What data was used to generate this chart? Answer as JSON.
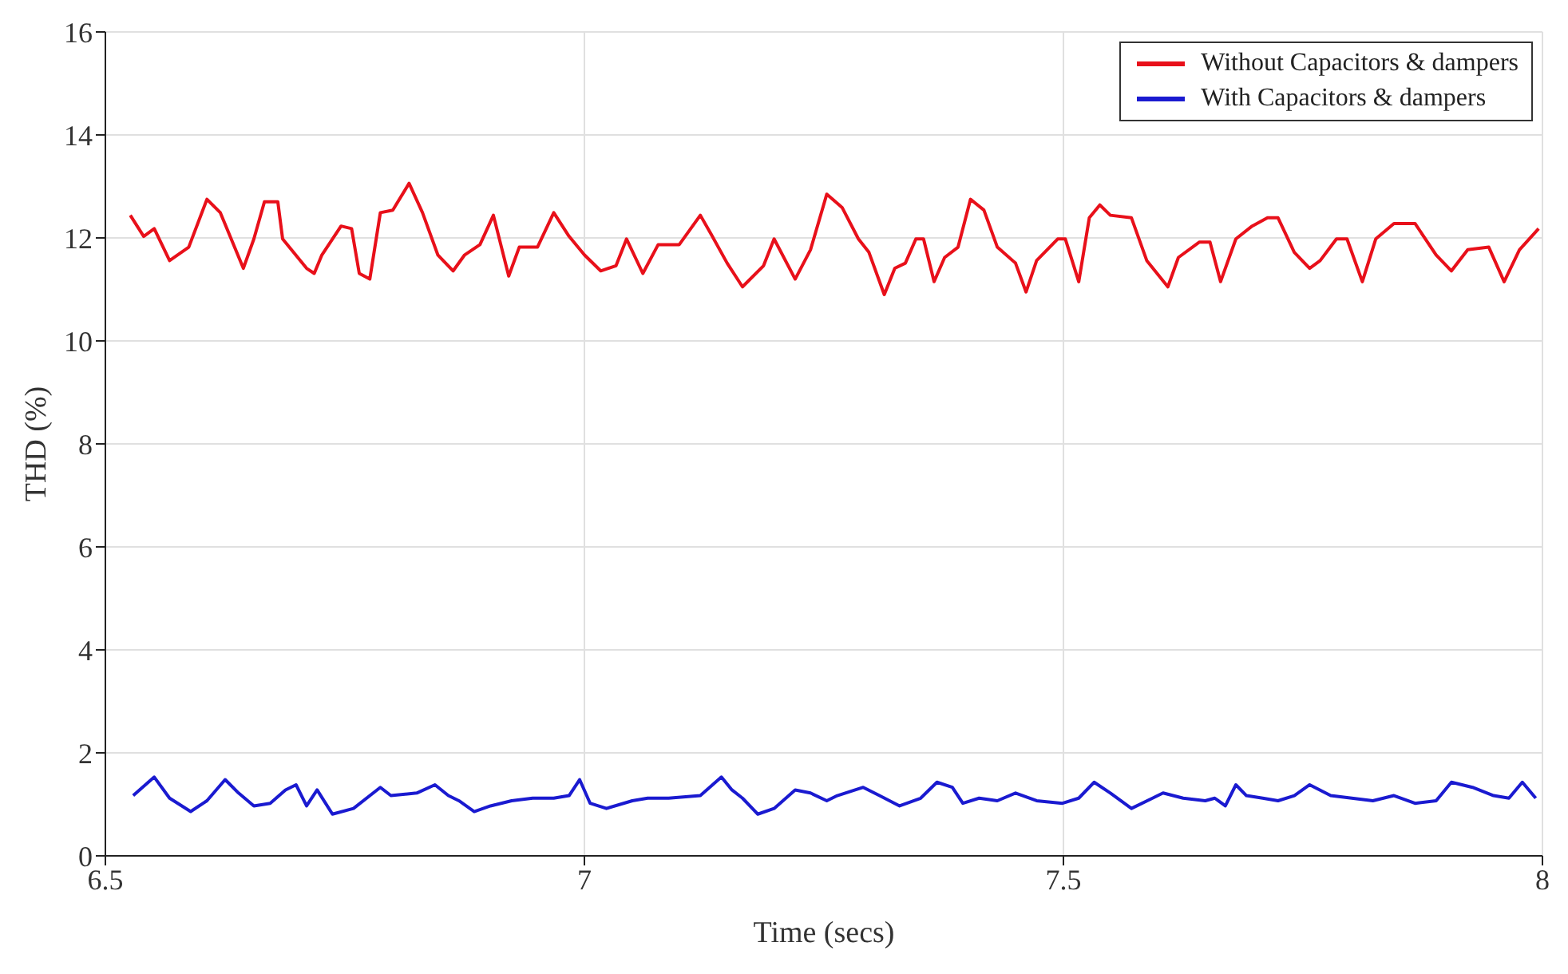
{
  "chart_data": {
    "type": "line",
    "xlabel": "Time (secs)",
    "ylabel": "THD (%)",
    "xlim": [
      6.5,
      8
    ],
    "xticks": [
      6.5,
      7,
      7.5,
      8
    ],
    "ylim": [
      0,
      16
    ],
    "yticks": [
      0,
      2,
      4,
      6,
      8,
      10,
      12,
      14,
      16
    ],
    "grid": true,
    "legend": "top right",
    "marker": "none",
    "line_style": "solid",
    "series": [
      {
        "name": "Without Capacitors & dampers",
        "color": "#e8101a",
        "x": [
          6.526,
          6.54,
          6.551,
          6.567,
          6.587,
          6.606,
          6.62,
          6.644,
          6.655,
          6.666,
          6.68,
          6.685,
          6.71,
          6.718,
          6.726,
          6.746,
          6.757,
          6.765,
          6.776,
          6.787,
          6.8,
          6.817,
          6.831,
          6.847,
          6.863,
          6.875,
          6.891,
          6.905,
          6.921,
          6.932,
          6.951,
          6.968,
          6.984,
          7.0,
          7.017,
          7.033,
          7.044,
          7.061,
          7.077,
          7.099,
          7.121,
          7.132,
          7.149,
          7.165,
          7.187,
          7.198,
          7.22,
          7.236,
          7.253,
          7.269,
          7.286,
          7.297,
          7.313,
          7.324,
          7.335,
          7.346,
          7.354,
          7.365,
          7.376,
          7.39,
          7.403,
          7.417,
          7.431,
          7.45,
          7.461,
          7.472,
          7.494,
          7.502,
          7.516,
          7.527,
          7.538,
          7.549,
          7.571,
          7.587,
          7.609,
          7.62,
          7.642,
          7.653,
          7.664,
          7.68,
          7.697,
          7.713,
          7.724,
          7.741,
          7.757,
          7.768,
          7.785,
          7.796,
          7.812,
          7.826,
          7.845,
          7.867,
          7.889,
          7.905,
          7.922,
          7.944,
          7.96,
          7.976,
          7.996
        ],
        "values": [
          12.44,
          12.03,
          12.18,
          11.56,
          11.82,
          12.75,
          12.49,
          11.41,
          11.98,
          12.7,
          12.7,
          11.98,
          11.41,
          11.31,
          11.67,
          12.23,
          12.18,
          11.31,
          11.2,
          12.49,
          12.54,
          13.06,
          12.49,
          11.67,
          11.36,
          11.67,
          11.87,
          12.44,
          11.26,
          11.82,
          11.82,
          12.49,
          12.03,
          11.67,
          11.36,
          11.46,
          11.98,
          11.31,
          11.87,
          11.87,
          12.44,
          12.08,
          11.51,
          11.05,
          11.46,
          11.98,
          11.2,
          11.77,
          12.85,
          12.59,
          11.98,
          11.72,
          10.9,
          11.41,
          11.51,
          11.98,
          11.98,
          11.15,
          11.62,
          11.82,
          12.75,
          12.54,
          11.82,
          11.51,
          10.95,
          11.56,
          11.98,
          11.98,
          11.15,
          12.39,
          12.64,
          12.44,
          12.39,
          11.56,
          11.05,
          11.62,
          11.92,
          11.92,
          11.15,
          11.98,
          12.23,
          12.39,
          12.39,
          11.72,
          11.41,
          11.56,
          11.98,
          11.98,
          11.15,
          11.98,
          12.28,
          12.28,
          11.67,
          11.36,
          11.77,
          11.82,
          11.15,
          11.77,
          12.18
        ]
      },
      {
        "name": "With Capacitors & dampers",
        "color": "#1a1ad0",
        "x": [
          6.529,
          6.551,
          6.567,
          6.589,
          6.606,
          6.625,
          6.639,
          6.655,
          6.672,
          6.688,
          6.699,
          6.71,
          6.721,
          6.737,
          6.759,
          6.787,
          6.798,
          6.825,
          6.844,
          6.858,
          6.869,
          6.885,
          6.902,
          6.924,
          6.946,
          6.968,
          6.984,
          6.995,
          7.006,
          7.023,
          7.05,
          7.066,
          7.088,
          7.121,
          7.143,
          7.154,
          7.165,
          7.181,
          7.198,
          7.22,
          7.236,
          7.253,
          7.264,
          7.291,
          7.308,
          7.329,
          7.351,
          7.368,
          7.384,
          7.395,
          7.412,
          7.431,
          7.45,
          7.472,
          7.499,
          7.516,
          7.532,
          7.549,
          7.571,
          7.593,
          7.604,
          7.625,
          7.648,
          7.658,
          7.669,
          7.68,
          7.691,
          7.708,
          7.724,
          7.741,
          7.757,
          7.779,
          7.801,
          7.823,
          7.845,
          7.867,
          7.889,
          7.905,
          7.927,
          7.949,
          7.965,
          7.979,
          7.993
        ],
        "values": [
          1.17,
          1.53,
          1.12,
          0.86,
          1.07,
          1.48,
          1.22,
          0.97,
          1.02,
          1.28,
          1.38,
          0.97,
          1.28,
          0.81,
          0.92,
          1.33,
          1.17,
          1.22,
          1.38,
          1.17,
          1.07,
          0.86,
          0.97,
          1.07,
          1.12,
          1.12,
          1.17,
          1.48,
          1.02,
          0.92,
          1.07,
          1.12,
          1.12,
          1.17,
          1.53,
          1.28,
          1.12,
          0.81,
          0.92,
          1.28,
          1.22,
          1.07,
          1.17,
          1.33,
          1.17,
          0.97,
          1.12,
          1.43,
          1.33,
          1.02,
          1.12,
          1.07,
          1.22,
          1.07,
          1.02,
          1.12,
          1.43,
          1.22,
          0.92,
          1.12,
          1.22,
          1.12,
          1.07,
          1.12,
          0.97,
          1.38,
          1.17,
          1.12,
          1.07,
          1.17,
          1.38,
          1.17,
          1.12,
          1.07,
          1.17,
          1.02,
          1.07,
          1.43,
          1.33,
          1.17,
          1.12,
          1.43,
          1.12
        ]
      }
    ]
  }
}
